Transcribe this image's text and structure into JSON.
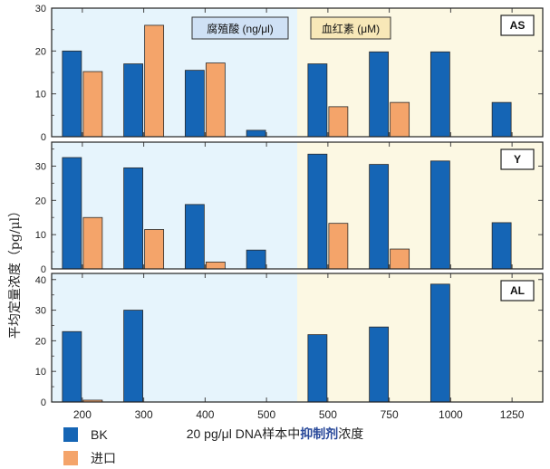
{
  "chart_data": {
    "type": "bar",
    "ylabel": "平均定量浓度（pg/μl）",
    "xlabel_parts": [
      "20 pg/μl DNA样本中",
      "抑制剂",
      "浓度"
    ],
    "region_labels": [
      "腐殖酸 (ng/μl)",
      "血红素 (μM)"
    ],
    "categories": [
      "200",
      "300",
      "400",
      "500",
      "500",
      "750",
      "1000",
      "1250"
    ],
    "legend": [
      "BK",
      "进口"
    ],
    "colors": {
      "BK": "#1565b5",
      "进口": "#f4a46a",
      "left_bg": "#e6f4fc",
      "right_bg": "#fcf8e3"
    },
    "panels": [
      {
        "name": "AS",
        "ylim": [
          0,
          30
        ],
        "yticks": [
          0,
          10,
          20,
          30
        ],
        "series": [
          {
            "name": "BK",
            "values": [
              20,
              17,
              15.5,
              1.5,
              17,
              19.8,
              19.8,
              8
            ]
          },
          {
            "name": "进口",
            "values": [
              15.2,
              26,
              17.2,
              0,
              7,
              8,
              0,
              0
            ]
          }
        ]
      },
      {
        "name": "Y",
        "ylim": [
          0,
          37
        ],
        "yticks": [
          0,
          10,
          20,
          30
        ],
        "series": [
          {
            "name": "BK",
            "values": [
              32.5,
              29.5,
              18.8,
              5.5,
              33.5,
              30.5,
              31.5,
              13.5
            ]
          },
          {
            "name": "进口",
            "values": [
              15,
              11.5,
              2,
              0,
              13.3,
              5.8,
              0,
              0
            ]
          }
        ]
      },
      {
        "name": "AL",
        "ylim": [
          0,
          42
        ],
        "yticks": [
          0,
          10,
          20,
          30,
          40
        ],
        "series": [
          {
            "name": "BK",
            "values": [
              23,
              30,
              0,
              0,
              22,
              24.5,
              38.5,
              0
            ]
          },
          {
            "name": "进口",
            "values": [
              0.6,
              0,
              0,
              0,
              0,
              0,
              0,
              0
            ]
          }
        ]
      }
    ]
  }
}
